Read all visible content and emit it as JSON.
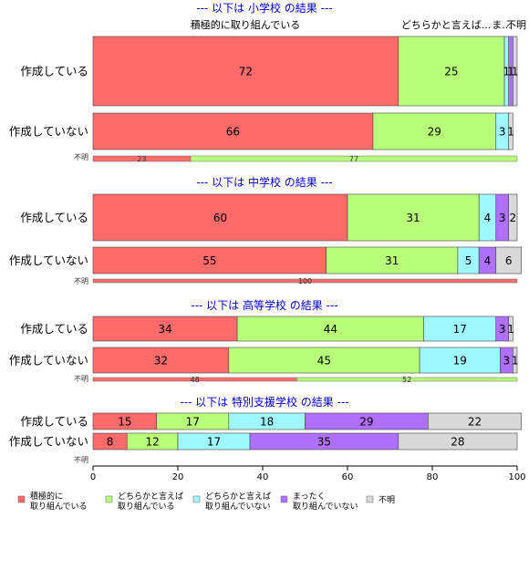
{
  "chart_data": {
    "type": "bar",
    "orientation": "horizontal-stacked",
    "xlim": [
      0,
      100
    ],
    "x_ticks": [
      "0",
      "20",
      "40",
      "60",
      "80",
      "100"
    ],
    "segment_colors": [
      "#ff6b6b",
      "#b8ff7a",
      "#9ff7ff",
      "#b070ff",
      "#d9d9d9"
    ],
    "legend": [
      "積極的に\n取り組んでいる",
      "どちらかと言えば\n取り組んでいる",
      "どちらかと言えば\n取り組んでいない",
      "まったく\n取り組んでいない",
      "不明"
    ],
    "top_labels": [
      "積極的に取り組んでいる",
      "どちらかと言えば...",
      "ま...",
      "不明"
    ],
    "panels": [
      {
        "title": "--- 以下は 小学校 の結果 ---",
        "categories": [
          "作成している",
          "作成していない"
        ],
        "rows": [
          {
            "values": [
              72,
              25,
              1,
              1,
              1
            ],
            "labels": [
              "72",
              "25",
              "1",
              "1",
              "1"
            ]
          },
          {
            "values": [
              66,
              29,
              3,
              0,
              1
            ],
            "labels": [
              "66",
              "29",
              "3",
              "",
              "1"
            ]
          }
        ],
        "unknown": {
          "label": "不明",
          "values": [
            23,
            77
          ],
          "labels": [
            "23",
            "77"
          ]
        }
      },
      {
        "title": "--- 以下は 中学校 の結果 ---",
        "categories": [
          "作成している",
          "作成していない"
        ],
        "rows": [
          {
            "values": [
              60,
              31,
              4,
              3,
              2
            ],
            "labels": [
              "60",
              "31",
              "4",
              "3",
              "2"
            ]
          },
          {
            "values": [
              55,
              31,
              5,
              4,
              6
            ],
            "labels": [
              "55",
              "31",
              "5",
              "4",
              "6"
            ]
          }
        ],
        "unknown": {
          "label": "不明",
          "values": [
            100,
            0
          ],
          "labels": [
            "100",
            ""
          ]
        }
      },
      {
        "title": "--- 以下は 高等学校 の結果 ---",
        "categories": [
          "作成している",
          "作成していない"
        ],
        "rows": [
          {
            "values": [
              34,
              44,
              17,
              3,
              1
            ],
            "labels": [
              "34",
              "44",
              "17",
              "3",
              "1"
            ]
          },
          {
            "values": [
              32,
              45,
              19,
              3,
              1
            ],
            "labels": [
              "32",
              "45",
              "19",
              "3",
              "1"
            ]
          }
        ],
        "unknown": {
          "label": "不明",
          "values": [
            48,
            52
          ],
          "labels": [
            "48",
            "52"
          ]
        }
      },
      {
        "title": "--- 以下は 特別支援学校 の結果 ---",
        "categories": [
          "作成している",
          "作成していない"
        ],
        "rows": [
          {
            "values": [
              15,
              17,
              18,
              29,
              22
            ],
            "labels": [
              "15",
              "17",
              "18",
              "29",
              "22"
            ]
          },
          {
            "values": [
              8,
              12,
              17,
              35,
              28
            ],
            "labels": [
              "8",
              "12",
              "17",
              "35",
              "28"
            ]
          }
        ],
        "unknown": {
          "label": "不明",
          "values": [],
          "labels": []
        }
      }
    ]
  }
}
